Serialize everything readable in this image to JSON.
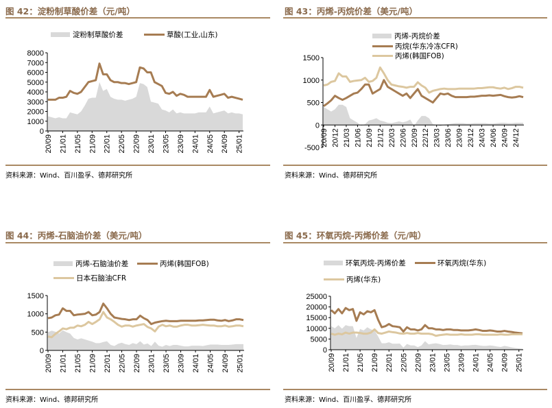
{
  "source_a": "资料来源：Wind、百川盈孚、德邦研究所",
  "source_b": "资料来源：Wind、德邦研究所",
  "chart_data": [
    {
      "type": "area+line",
      "title": "图 42：淀粉制草酸价差（元/吨）",
      "source": "资料来源：Wind、百川盈孚、德邦研究所",
      "x_start": "2020-09",
      "x_ticks": [
        "20/09",
        "21/01",
        "21/05",
        "21/09",
        "22/01",
        "22/05",
        "22/09",
        "23/01",
        "23/05",
        "23/09",
        "24/01",
        "24/05",
        "24/09",
        "25/01"
      ],
      "tick_step_months": 4,
      "ylim": [
        0,
        8000
      ],
      "yticks": [
        0,
        1000,
        2000,
        3000,
        4000,
        5000,
        6000,
        7000,
        8000
      ],
      "legend_placement": "top",
      "series": [
        {
          "name": "淀粉制草酸价差",
          "kind": "area",
          "color": "#d9d9d9",
          "values": [
            1500,
            1400,
            1300,
            1400,
            1300,
            1300,
            1900,
            1800,
            1700,
            2000,
            2600,
            3300,
            3400,
            3400,
            5000,
            4100,
            4300,
            3500,
            3300,
            3200,
            3200,
            3100,
            3200,
            3300,
            3500,
            4900,
            4800,
            4500,
            3000,
            2900,
            2800,
            2200,
            2100,
            1900,
            2200,
            1800,
            1900,
            1800,
            1800,
            1800,
            1800,
            1900,
            1900,
            1900,
            2500,
            1800,
            1900,
            2000,
            2100,
            1800,
            1900,
            1800,
            1800,
            1700
          ]
        },
        {
          "name": "草酸(工业,山东)",
          "kind": "line",
          "color": "#a67c52",
          "values": [
            3200,
            3200,
            3200,
            3400,
            3400,
            3500,
            4100,
            3900,
            3800,
            4000,
            4500,
            5000,
            5100,
            5200,
            6900,
            5800,
            5800,
            5200,
            5000,
            5000,
            4900,
            4900,
            4800,
            4900,
            5000,
            6500,
            6400,
            6000,
            6000,
            5000,
            4800,
            4600,
            3900,
            3800,
            4000,
            3600,
            3800,
            3700,
            3500,
            3500,
            3500,
            3500,
            3500,
            3500,
            4200,
            3500,
            3600,
            3700,
            3800,
            3400,
            3500,
            3400,
            3300,
            3200
          ]
        }
      ]
    },
    {
      "type": "area+line",
      "title": "图 43：丙烯-丙烷价差（美元/吨）",
      "source": "资料来源：Wind、德邦研究所",
      "x_start": "2020-09",
      "x_ticks": [
        "20/09",
        "20/12",
        "21/03",
        "21/06",
        "21/09",
        "21/12",
        "22/03",
        "22/06",
        "22/09",
        "22/12",
        "23/03",
        "23/06",
        "23/09",
        "23/12",
        "24/03",
        "24/06",
        "24/09",
        "24/12"
      ],
      "tick_step_months": 3,
      "ylim": [
        -500,
        1500
      ],
      "yticks": [
        -500,
        0,
        500,
        1000,
        1500
      ],
      "legend_placement": "top",
      "series": [
        {
          "name": "丙烯-丙烷价差",
          "kind": "area",
          "color": "#d9d9d9",
          "values": [
            400,
            350,
            300,
            350,
            450,
            450,
            400,
            150,
            100,
            50,
            -20,
            20,
            100,
            120,
            150,
            100,
            80,
            50,
            40,
            60,
            80,
            60,
            80,
            120,
            -20,
            100,
            200,
            200,
            150,
            20,
            0,
            -30,
            10,
            20,
            30,
            40,
            40,
            40,
            30,
            30,
            40,
            40,
            40,
            40,
            30,
            30,
            40,
            50,
            50,
            40,
            40,
            50,
            50,
            50
          ]
        },
        {
          "name": "丙烷(华东冷冻CFR)",
          "kind": "line",
          "color": "#a67c52",
          "values": [
            420,
            480,
            550,
            650,
            600,
            560,
            600,
            650,
            700,
            720,
            800,
            900,
            900,
            700,
            750,
            800,
            1000,
            850,
            800,
            750,
            700,
            650,
            700,
            600,
            700,
            800,
            650,
            600,
            550,
            500,
            600,
            700,
            680,
            700,
            650,
            620,
            620,
            620,
            620,
            630,
            630,
            640,
            650,
            650,
            660,
            650,
            660,
            670,
            640,
            620,
            610,
            620,
            640,
            620
          ]
        },
        {
          "name": "丙烯(韩国FOB)",
          "kind": "line",
          "color": "#dcc79f",
          "values": [
            880,
            900,
            960,
            980,
            1150,
            1080,
            1080,
            960,
            980,
            990,
            1000,
            1050,
            960,
            980,
            1050,
            1280,
            1150,
            1000,
            900,
            880,
            860,
            850,
            830,
            850,
            850,
            950,
            880,
            830,
            720,
            760,
            780,
            800,
            810,
            800,
            800,
            800,
            810,
            810,
            810,
            810,
            810,
            820,
            820,
            830,
            840,
            840,
            820,
            810,
            830,
            800,
            820,
            850,
            850,
            830
          ]
        }
      ]
    },
    {
      "type": "area+line",
      "title": "图 44：丙烯-石脑油价差（美元/吨）",
      "source": "资料来源：Wind、德邦研究所",
      "x_start": "2020-09",
      "x_ticks": [
        "20/09",
        "21/01",
        "21/05",
        "21/09",
        "22/01",
        "22/05",
        "22/09",
        "23/01",
        "23/05",
        "23/09",
        "24/01",
        "24/05",
        "24/09",
        "25/01"
      ],
      "tick_step_months": 4,
      "ylim": [
        0,
        1500
      ],
      "yticks": [
        0,
        500,
        1000,
        1500
      ],
      "legend_placement": "top",
      "series": [
        {
          "name": "丙烯-石脑油价差",
          "kind": "area",
          "color": "#d9d9d9",
          "values": [
            500,
            540,
            510,
            460,
            550,
            500,
            460,
            340,
            300,
            330,
            300,
            270,
            240,
            200,
            200,
            230,
            250,
            150,
            120,
            180,
            210,
            170,
            150,
            200,
            170,
            250,
            160,
            190,
            120,
            240,
            130,
            100,
            150,
            120,
            150,
            150,
            130,
            110,
            110,
            130,
            130,
            130,
            120,
            140,
            160,
            160,
            160,
            150,
            150,
            150,
            160,
            170,
            170,
            170
          ]
        },
        {
          "name": "丙烯(韩国FOB)",
          "kind": "line",
          "color": "#a67c52",
          "values": [
            880,
            900,
            960,
            980,
            1150,
            1080,
            1080,
            960,
            980,
            990,
            1000,
            1050,
            960,
            980,
            1050,
            1280,
            1150,
            1000,
            900,
            880,
            860,
            850,
            830,
            850,
            850,
            950,
            880,
            830,
            720,
            760,
            780,
            800,
            810,
            800,
            800,
            800,
            810,
            810,
            810,
            810,
            810,
            820,
            820,
            830,
            840,
            840,
            820,
            810,
            830,
            800,
            820,
            850,
            850,
            830
          ]
        },
        {
          "name": "日本石脑油CFR",
          "kind": "line",
          "color": "#dcc79f",
          "values": [
            380,
            360,
            450,
            520,
            600,
            580,
            620,
            620,
            680,
            660,
            700,
            780,
            720,
            780,
            850,
            1050,
            900,
            850,
            780,
            700,
            650,
            680,
            680,
            650,
            680,
            700,
            720,
            640,
            600,
            520,
            650,
            700,
            660,
            680,
            650,
            650,
            680,
            700,
            700,
            680,
            680,
            690,
            700,
            690,
            680,
            680,
            660,
            660,
            680,
            650,
            660,
            680,
            680,
            660
          ]
        }
      ]
    },
    {
      "type": "area+line",
      "title": "图 45：环氧丙烷-丙烯价差（元/吨）",
      "source": "资料来源：Wind、百川盈孚、德邦研究所",
      "x_start": "2020-09",
      "x_ticks": [
        "20/09",
        "21/01",
        "21/05",
        "21/09",
        "22/01",
        "22/05",
        "22/09",
        "23/01",
        "23/05",
        "23/09",
        "24/01",
        "24/05",
        "24/09",
        "25/01"
      ],
      "tick_step_months": 4,
      "ylim": [
        0,
        25000
      ],
      "yticks": [
        0,
        5000,
        10000,
        15000,
        20000,
        25000
      ],
      "legend_placement": "top",
      "series": [
        {
          "name": "环氧丙烷-丙烯价差",
          "kind": "area",
          "color": "#d9d9d9",
          "values": [
            11000,
            10000,
            11500,
            9800,
            11500,
            11000,
            11000,
            5500,
            9700,
            9000,
            10500,
            9500,
            9000,
            6200,
            3000,
            3000,
            3500,
            2800,
            2800,
            2900,
            1000,
            2700,
            2000,
            2000,
            1200,
            2000,
            4000,
            2500,
            2800,
            3000,
            2700,
            2200,
            2300,
            2500,
            2200,
            2200,
            1800,
            2000,
            2000,
            2200,
            2300,
            2000,
            1800,
            1800,
            2000,
            1800,
            1500,
            1300,
            1800,
            1500,
            1100,
            800,
            600,
            400
          ]
        },
        {
          "name": "环氧丙烷(华东)",
          "kind": "line",
          "color": "#a67c52",
          "values": [
            18500,
            17000,
            19000,
            17000,
            19500,
            18500,
            19000,
            13500,
            17500,
            16500,
            18000,
            17500,
            18500,
            14000,
            10500,
            11000,
            12000,
            11000,
            10800,
            10500,
            8500,
            10500,
            9500,
            9500,
            9000,
            9500,
            11500,
            10000,
            10000,
            9500,
            9500,
            9200,
            9500,
            9500,
            9200,
            9200,
            9000,
            9000,
            9000,
            9200,
            9500,
            9200,
            8800,
            8800,
            9000,
            8800,
            8500,
            8500,
            8800,
            8500,
            8300,
            8000,
            7800,
            7600
          ]
        },
        {
          "name": "丙烯(华东)",
          "kind": "line",
          "color": "#dcc79f",
          "values": [
            7500,
            7000,
            7500,
            7200,
            8000,
            7500,
            8000,
            8000,
            7800,
            7500,
            7500,
            8000,
            9500,
            7800,
            7500,
            8000,
            8500,
            8200,
            8000,
            7600,
            7500,
            7800,
            7500,
            7500,
            7800,
            7500,
            7500,
            7500,
            7200,
            6500,
            6800,
            7000,
            7200,
            7000,
            7000,
            7000,
            7200,
            7000,
            7000,
            7000,
            7200,
            7200,
            7000,
            7000,
            7000,
            7000,
            7000,
            7200,
            7000,
            7000,
            7200,
            7200,
            7200,
            7200
          ]
        }
      ]
    }
  ]
}
